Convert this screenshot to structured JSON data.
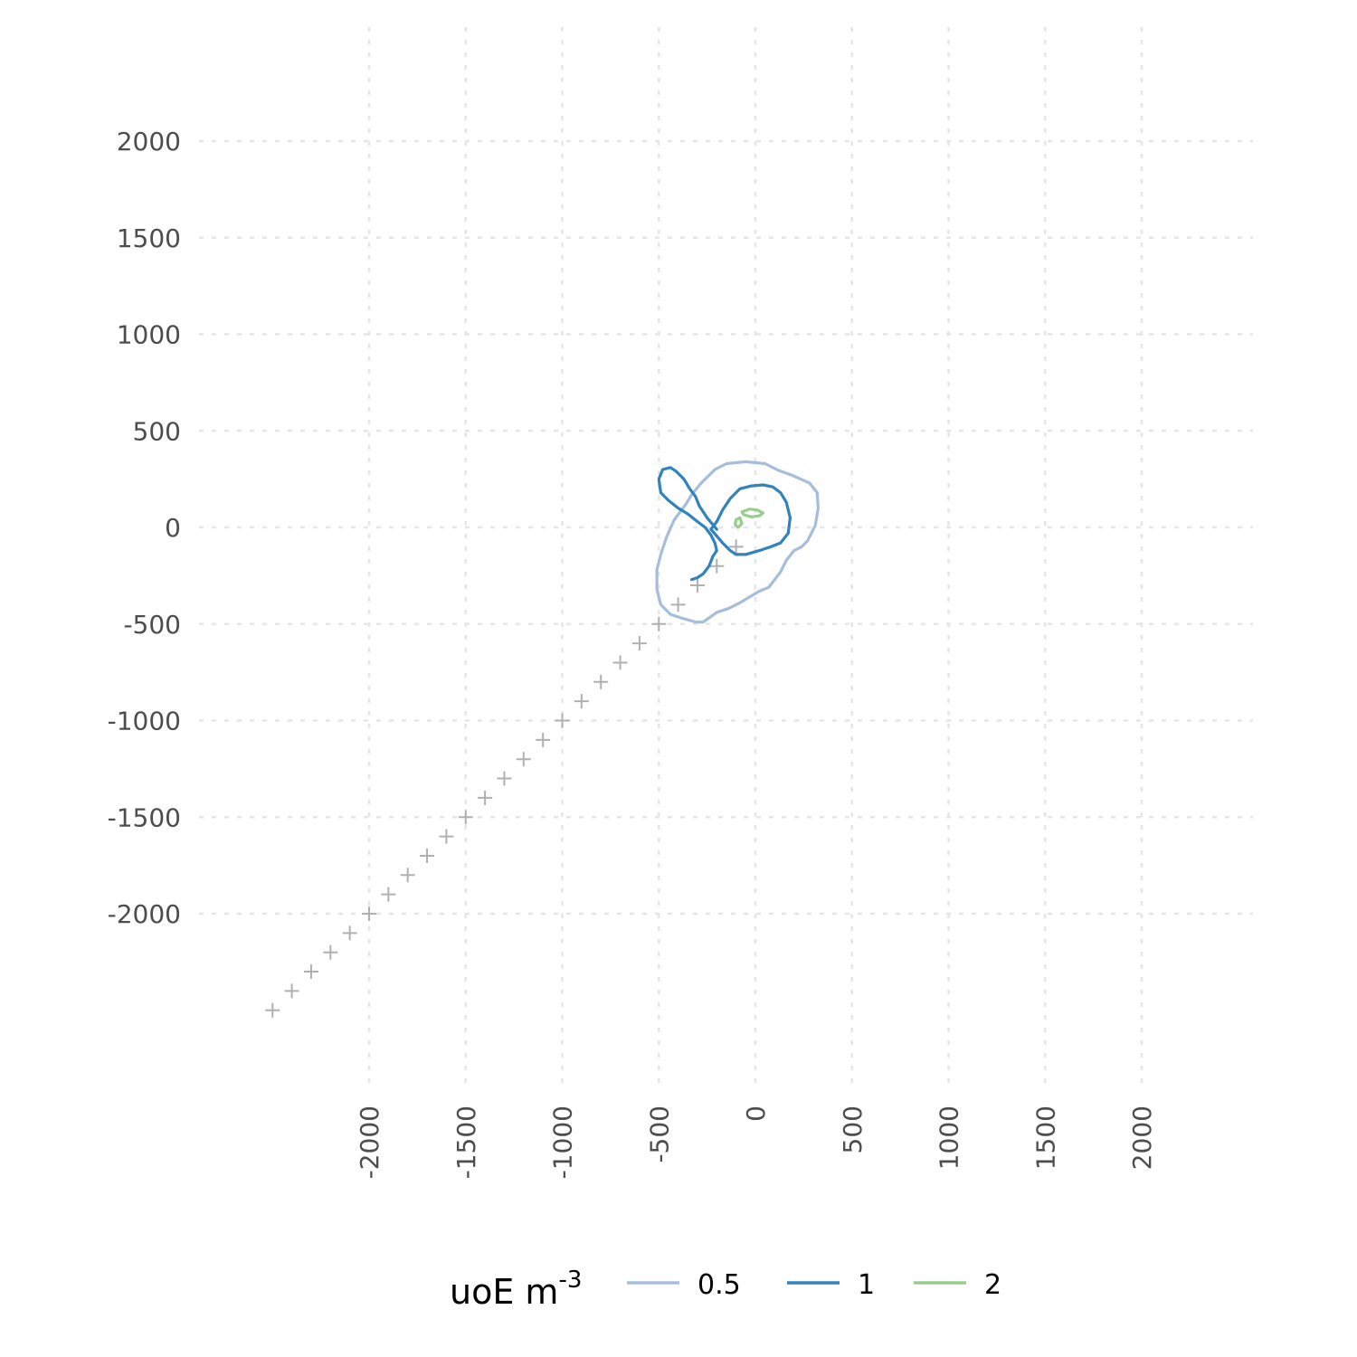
{
  "chart_data": {
    "type": "contour",
    "title": "",
    "xlabel": "",
    "ylabel": "",
    "xlim": [
      -2600,
      2560
    ],
    "ylim": [
      -2600,
      2560
    ],
    "x_ticks": [
      -2000,
      -1500,
      -1000,
      -500,
      0,
      500,
      1000,
      1500,
      2000
    ],
    "y_ticks": [
      -2000,
      -1500,
      -1000,
      -500,
      0,
      500,
      1000,
      1500,
      2000
    ],
    "grid": true,
    "legend": {
      "position": "bottom",
      "title_main": "uoE m",
      "title_sup": "-3"
    },
    "track_points": {
      "color": "#b0b0b0",
      "points": [
        [
          -2500,
          -2500
        ],
        [
          -2400,
          -2400
        ],
        [
          -2300,
          -2300
        ],
        [
          -2200,
          -2200
        ],
        [
          -2100,
          -2100
        ],
        [
          -2000,
          -2000
        ],
        [
          -1900,
          -1900
        ],
        [
          -1800,
          -1800
        ],
        [
          -1700,
          -1700
        ],
        [
          -1600,
          -1600
        ],
        [
          -1500,
          -1500
        ],
        [
          -1400,
          -1400
        ],
        [
          -1300,
          -1300
        ],
        [
          -1200,
          -1200
        ],
        [
          -1100,
          -1100
        ],
        [
          -1000,
          -1000
        ],
        [
          -900,
          -900
        ],
        [
          -800,
          -800
        ],
        [
          -700,
          -700
        ],
        [
          -600,
          -600
        ],
        [
          -500,
          -500
        ],
        [
          -400,
          -400
        ],
        [
          -300,
          -300
        ],
        [
          -200,
          -200
        ],
        [
          -100,
          -100
        ]
      ]
    },
    "series": [
      {
        "name": "0.5",
        "color": "#a6bddb",
        "closed": true,
        "points": [
          [
            -50,
            340
          ],
          [
            50,
            330
          ],
          [
            120,
            295
          ],
          [
            190,
            270
          ],
          [
            280,
            230
          ],
          [
            320,
            180
          ],
          [
            325,
            100
          ],
          [
            310,
            10
          ],
          [
            290,
            -30
          ],
          [
            270,
            -70
          ],
          [
            240,
            -100
          ],
          [
            200,
            -120
          ],
          [
            160,
            -170
          ],
          [
            130,
            -230
          ],
          [
            100,
            -270
          ],
          [
            70,
            -310
          ],
          [
            20,
            -330
          ],
          [
            -30,
            -360
          ],
          [
            -80,
            -390
          ],
          [
            -140,
            -420
          ],
          [
            -200,
            -440
          ],
          [
            -270,
            -490
          ],
          [
            -310,
            -490
          ],
          [
            -380,
            -470
          ],
          [
            -440,
            -450
          ],
          [
            -490,
            -400
          ],
          [
            -510,
            -320
          ],
          [
            -510,
            -220
          ],
          [
            -490,
            -140
          ],
          [
            -460,
            -50
          ],
          [
            -420,
            40
          ],
          [
            -360,
            120
          ],
          [
            -330,
            170
          ],
          [
            -280,
            230
          ],
          [
            -210,
            300
          ],
          [
            -150,
            330
          ]
        ]
      },
      {
        "name": "1",
        "color": "#3182bd",
        "closed": false,
        "points": [
          [
            -200,
            -10
          ],
          [
            -250,
            50
          ],
          [
            -290,
            110
          ],
          [
            -310,
            160
          ],
          [
            -340,
            200
          ],
          [
            -370,
            250
          ],
          [
            -410,
            290
          ],
          [
            -440,
            310
          ],
          [
            -480,
            300
          ],
          [
            -500,
            250
          ],
          [
            -490,
            180
          ],
          [
            -450,
            140
          ],
          [
            -400,
            100
          ],
          [
            -350,
            70
          ],
          [
            -300,
            30
          ],
          [
            -260,
            0
          ],
          [
            -230,
            -40
          ],
          [
            -210,
            -80
          ],
          [
            -200,
            -120
          ],
          [
            -220,
            -150
          ],
          [
            -240,
            -200
          ],
          [
            -270,
            -240
          ],
          [
            -300,
            -260
          ],
          [
            -330,
            -270
          ]
        ]
      },
      {
        "name": "1",
        "color": "#3182bd",
        "closed": false,
        "points": [
          [
            -230,
            -10
          ],
          [
            -170,
            -80
          ],
          [
            -130,
            -120
          ],
          [
            -100,
            -140
          ],
          [
            -50,
            -140
          ],
          [
            20,
            -120
          ],
          [
            80,
            -100
          ],
          [
            130,
            -80
          ],
          [
            170,
            -30
          ],
          [
            180,
            50
          ],
          [
            160,
            130
          ],
          [
            130,
            180
          ],
          [
            90,
            210
          ],
          [
            40,
            220
          ],
          [
            -20,
            215
          ],
          [
            -80,
            200
          ],
          [
            -130,
            150
          ],
          [
            -170,
            90
          ],
          [
            -200,
            30
          ],
          [
            -230,
            -10
          ]
        ]
      },
      {
        "name": "2",
        "color": "#98cd8f",
        "closed": true,
        "points": [
          [
            -70,
            80
          ],
          [
            -30,
            95
          ],
          [
            10,
            90
          ],
          [
            40,
            75
          ],
          [
            20,
            60
          ],
          [
            -20,
            55
          ],
          [
            -60,
            65
          ]
        ]
      },
      {
        "name": "2",
        "color": "#98cd8f",
        "closed": true,
        "points": [
          [
            -100,
            40
          ],
          [
            -80,
            50
          ],
          [
            -70,
            20
          ],
          [
            -90,
            0
          ],
          [
            -105,
            15
          ]
        ]
      }
    ],
    "legend_entries": [
      {
        "label": "0.5",
        "color": "#a6bddb"
      },
      {
        "label": "1",
        "color": "#3182bd"
      },
      {
        "label": "2",
        "color": "#98cd8f"
      }
    ]
  }
}
